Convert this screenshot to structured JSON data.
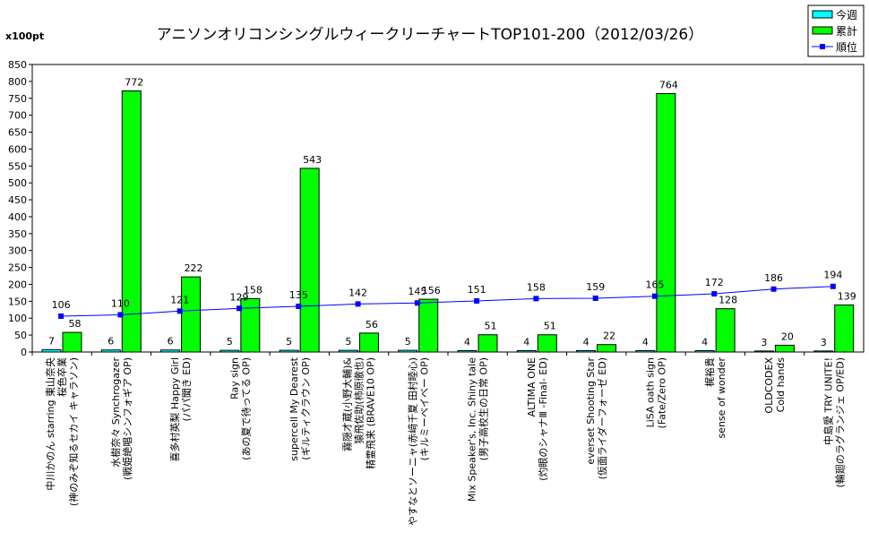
{
  "chart_data": {
    "type": "bar",
    "title": "アニソンオリコンシングルウィークリーチャートTOP101-200（2012/03/26）",
    "unit_label": "x100pt",
    "ylim": [
      0,
      850
    ],
    "ytick_step": 50,
    "legend_position": "top-right",
    "categories": [
      [
        "中川かのん starring 東山奈央",
        "桜色卒業",
        "(神のみぞ知るセカイ キャラソン)"
      ],
      [
        "水樹奈々 Synchrogazer",
        "(戦姫絶唱シンフォギア OP)"
      ],
      [
        "喜多村英梨 Happy Girl",
        "(パパ聞き ED)"
      ],
      [
        "Ray sign",
        "(あの夏で待ってる OP)"
      ],
      [
        "supercell My Dearest",
        "(ギルティクラウン OP)"
      ],
      [
        "霧隠才蔵(小野大輔)&",
        "猿飛佐助(柿原徹也)",
        "精霊飛来 (BRAVE10 OP)"
      ],
      [
        "やすなとソーニャ(赤﨑千夏 田村睦心)",
        "(キルミーベイベー OP)"
      ],
      [
        "Mix Speaker's, Inc. Shiny tale",
        "(男子高校生の日常 OP)"
      ],
      [
        "ALTIMA ONE",
        "(灼眼のシャナⅢ -Final- ED)"
      ],
      [
        "everset Shooting Star",
        "(仮面ライダーフォーゼ ED)"
      ],
      [
        "LiSA oath sign",
        "(Fate/Zero OP)"
      ],
      [
        "梶裕貴",
        "sense of wonder"
      ],
      [
        "OLDCODEX",
        "Cold hands"
      ],
      [
        "中島愛 TRY UNITE!",
        "(輪廻のラグランジェ OP/ED)"
      ]
    ],
    "series": [
      {
        "name": "今週",
        "type": "bar",
        "color": "#00ffff",
        "values": [
          7,
          6,
          6,
          5,
          5,
          5,
          5,
          4,
          4,
          4,
          4,
          4,
          3,
          3
        ]
      },
      {
        "name": "累計",
        "type": "bar",
        "color": "#00ff00",
        "values": [
          58,
          772,
          222,
          158,
          543,
          56,
          156,
          51,
          51,
          22,
          764,
          128,
          20,
          139
        ]
      },
      {
        "name": "順位",
        "type": "line",
        "color": "#0000ff",
        "values": [
          106,
          110,
          121,
          129,
          135,
          142,
          145,
          151,
          158,
          159,
          165,
          172,
          186,
          194
        ]
      }
    ]
  }
}
